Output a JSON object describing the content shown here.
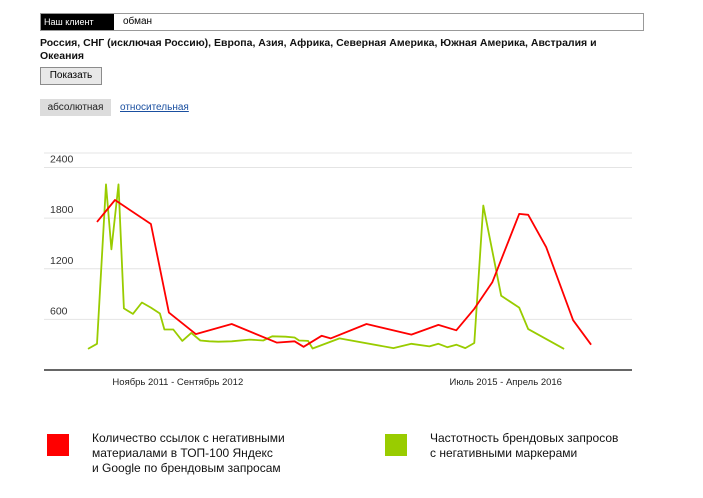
{
  "search": {
    "chip_label": "Наш клиент",
    "query": "обман"
  },
  "regions": "Россия, СНГ (исключая Россию), Европа, Азия, Африка, Северная Америка, Южная Америка, Австралия и Океания",
  "buttons": {
    "show_label": "Показать"
  },
  "modes": {
    "absolute": "абсолютная",
    "relative": "относительная",
    "active": "absolute"
  },
  "legend": {
    "red_label": [
      "Количество ссылок с негативными",
      "материалами в ТОП-100 Яндекс",
      "и Google по брендовым запросам"
    ],
    "green_label": [
      "Частотность брендовых запросов",
      "с негативными маркерами"
    ]
  },
  "chart_data": {
    "type": "line",
    "title": "",
    "xlabel": "",
    "ylabel": "",
    "ylim": [
      0,
      2400
    ],
    "yticks": [
      600,
      1200,
      1800,
      2400
    ],
    "grid": true,
    "x_tick_labels": [
      {
        "x": 10,
        "label": "Ноябрь 2011 - Сентябрь 2012"
      },
      {
        "x": 46.5,
        "label": "Июль 2015 - Апрель 2016"
      }
    ],
    "xlim": [
      0,
      61
    ],
    "series": [
      {
        "color": "#ff0000",
        "points": [
          [
            1,
            1755
          ],
          [
            3,
            2015
          ],
          [
            7,
            1730
          ],
          [
            9,
            680
          ],
          [
            12,
            425
          ],
          [
            16,
            545
          ],
          [
            21,
            325
          ],
          [
            23,
            340
          ],
          [
            24,
            275
          ],
          [
            26,
            405
          ],
          [
            27,
            375
          ],
          [
            31,
            545
          ],
          [
            36,
            420
          ],
          [
            39,
            535
          ],
          [
            41,
            470
          ],
          [
            43,
            725
          ],
          [
            45,
            1040
          ],
          [
            48,
            1850
          ],
          [
            49,
            1840
          ],
          [
            51,
            1455
          ],
          [
            54,
            590
          ],
          [
            56,
            300
          ]
        ]
      },
      {
        "color": "#99cc00",
        "points": [
          [
            0,
            250
          ],
          [
            1,
            310
          ],
          [
            2,
            2200
          ],
          [
            2.6,
            1430
          ],
          [
            3.4,
            2200
          ],
          [
            4,
            730
          ],
          [
            5,
            665
          ],
          [
            6,
            800
          ],
          [
            7,
            740
          ],
          [
            8,
            670
          ],
          [
            8.5,
            480
          ],
          [
            9.5,
            480
          ],
          [
            10.5,
            345
          ],
          [
            11.5,
            440
          ],
          [
            12.5,
            350
          ],
          [
            13.5,
            340
          ],
          [
            14.5,
            335
          ],
          [
            16,
            340
          ],
          [
            18,
            360
          ],
          [
            19.5,
            350
          ],
          [
            20.5,
            400
          ],
          [
            22,
            395
          ],
          [
            23,
            385
          ],
          [
            23.5,
            350
          ],
          [
            24.5,
            345
          ],
          [
            25,
            255
          ],
          [
            28,
            375
          ],
          [
            34,
            260
          ],
          [
            36,
            310
          ],
          [
            38,
            280
          ],
          [
            39,
            310
          ],
          [
            40,
            270
          ],
          [
            41,
            300
          ],
          [
            42,
            260
          ],
          [
            43,
            320
          ],
          [
            44,
            1950
          ],
          [
            46,
            880
          ],
          [
            48,
            740
          ],
          [
            49,
            485
          ],
          [
            53,
            250
          ]
        ]
      }
    ]
  }
}
